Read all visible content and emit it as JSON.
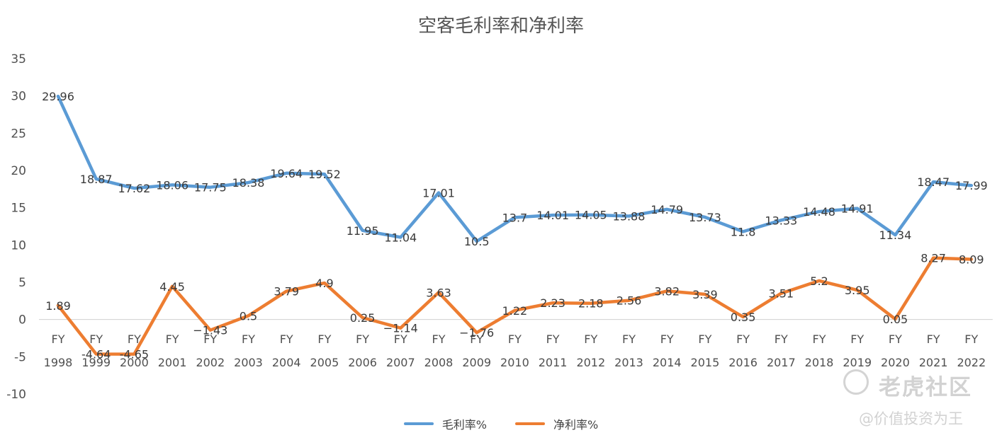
{
  "chart_data": {
    "type": "line",
    "title": "空客毛利率和净利率",
    "categories": [
      [
        "FY",
        "1998"
      ],
      [
        "FY",
        "1999"
      ],
      [
        "FY",
        "2000"
      ],
      [
        "FY",
        "2001"
      ],
      [
        "FY",
        "2002"
      ],
      [
        "FY",
        "2003"
      ],
      [
        "FY",
        "2004"
      ],
      [
        "FY",
        "2005"
      ],
      [
        "FY",
        "2006"
      ],
      [
        "FY",
        "2007"
      ],
      [
        "FY",
        "2008"
      ],
      [
        "FY",
        "2009"
      ],
      [
        "FY",
        "2010"
      ],
      [
        "FY",
        "2011"
      ],
      [
        "FY",
        "2012"
      ],
      [
        "FY",
        "2013"
      ],
      [
        "FY",
        "2014"
      ],
      [
        "FY",
        "2015"
      ],
      [
        "FY",
        "2016"
      ],
      [
        "FY",
        "2017"
      ],
      [
        "FY",
        "2018"
      ],
      [
        "FY",
        "2019"
      ],
      [
        "FY",
        "2020"
      ],
      [
        "FY",
        "2021"
      ],
      [
        "FY",
        "2022"
      ]
    ],
    "ylim": [
      -10,
      35
    ],
    "yticks": [
      35,
      30,
      25,
      20,
      15,
      10,
      5,
      0,
      -5,
      -10
    ],
    "grid": false,
    "legend_position": "bottom",
    "series": [
      {
        "name": "毛利率%",
        "color": "#5b9bd5",
        "values": [
          29.96,
          18.87,
          17.62,
          18.06,
          17.75,
          18.38,
          19.64,
          19.52,
          11.95,
          11.04,
          17.01,
          10.5,
          13.7,
          14.01,
          14.05,
          13.88,
          14.79,
          13.73,
          11.8,
          13.33,
          14.48,
          14.91,
          11.34,
          18.47,
          17.99
        ],
        "labels": [
          "29.96",
          "18.87",
          "17.62",
          "18.06",
          "17.75",
          "18.38",
          "19.64",
          "19.52",
          "11.95",
          "11.04",
          "17.01",
          "10.5",
          "13.7",
          "14.01",
          "14.05",
          "13.88",
          "14.79",
          "13.73",
          "11.8",
          "13.33",
          "14.48",
          "14.91",
          "11.34",
          "18.47",
          "17.99"
        ]
      },
      {
        "name": "净利率%",
        "color": "#ed7d31",
        "values": [
          1.89,
          -4.64,
          -4.65,
          4.45,
          -1.43,
          0.5,
          3.79,
          4.9,
          0.25,
          -1.14,
          3.63,
          -1.76,
          1.22,
          2.23,
          2.18,
          2.56,
          3.82,
          3.39,
          0.35,
          3.51,
          5.2,
          3.95,
          0.05,
          8.27,
          8.09
        ],
        "labels": [
          "1.89",
          "-4.64",
          "-4.65",
          "4.45",
          "−1.43",
          "0.5",
          "3.79",
          "4.9",
          "0.25",
          "−1.14",
          "3.63",
          "−1.76",
          "1.22",
          "2.23",
          "2.18",
          "2.56",
          "3.82",
          "3.39",
          "0.35",
          "3.51",
          "5.2",
          "3.95",
          "0.05",
          "8.27",
          "8.09"
        ]
      }
    ]
  },
  "watermark": {
    "brand": "老虎社区",
    "handle": "@价值投资为王"
  }
}
